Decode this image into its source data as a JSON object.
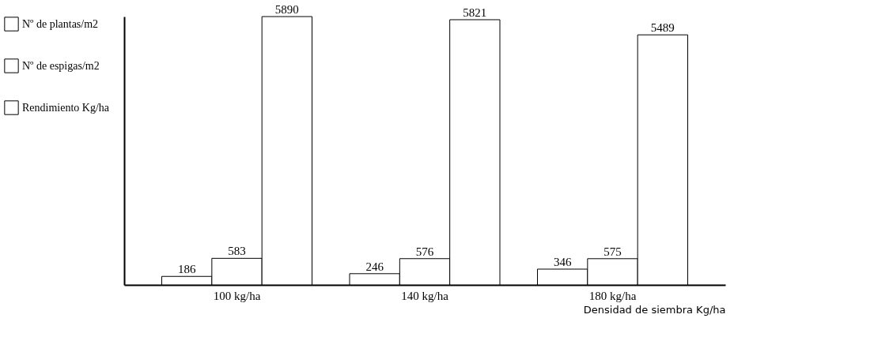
{
  "chart_data": {
    "type": "bar",
    "data_labels": true,
    "tick_labels": "x",
    "xlabel": "Densidad de siembra Kg/ha",
    "categories": [
      "100 kg/ha",
      "140 kg/ha",
      "180 kg/ha"
    ],
    "series": [
      {
        "name": "Nº de plantas/m2",
        "color": "#ffffff",
        "values": [
          186,
          246,
          346
        ]
      },
      {
        "name": "Nº de espigas/m2",
        "color": "#ffffff",
        "values": [
          583,
          576,
          575
        ]
      },
      {
        "name": "Rendimiento Kg/ha",
        "color": "#ffffff",
        "values": [
          5890,
          5821,
          5489
        ]
      }
    ],
    "legend": "left",
    "grid": false
  }
}
